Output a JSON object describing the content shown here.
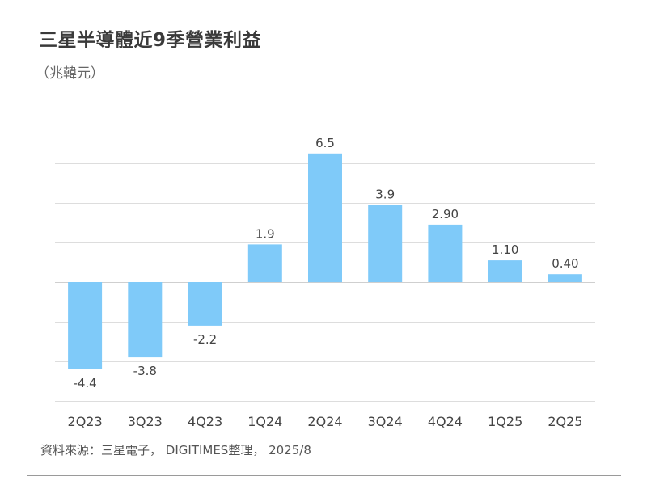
{
  "header": {
    "title": "三星半導體近9季營業利益",
    "unit": "（兆韓元）"
  },
  "footer": {
    "source": "資料來源：三星電子， DIGITIMES整理， 2025/8"
  },
  "colors": {
    "bar": "#7fcaf9",
    "grid": "#dddddd",
    "label": "#444444"
  },
  "chart_data": {
    "type": "bar",
    "title": "三星半導體近9季營業利益",
    "subtitle": "（兆韓元）",
    "categories": [
      "2Q23",
      "3Q23",
      "4Q23",
      "1Q24",
      "2Q24",
      "3Q24",
      "4Q24",
      "1Q25",
      "2Q25"
    ],
    "values": [
      -4.4,
      -3.8,
      -2.2,
      1.9,
      6.5,
      3.9,
      2.9,
      1.1,
      0.4
    ],
    "data_labels": [
      "-4.4",
      "-3.8",
      "-2.2",
      "1.9",
      "6.5",
      "3.9",
      "2.90",
      "1.10",
      "0.40"
    ],
    "xlabel": "",
    "ylabel": "",
    "ylim": [
      -6,
      8
    ],
    "ygrid_step": 2,
    "grid": true,
    "legend": false
  }
}
